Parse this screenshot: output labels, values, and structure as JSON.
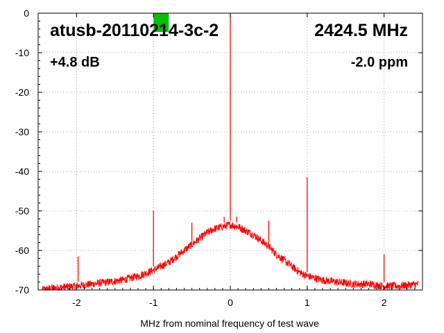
{
  "chart_data": {
    "type": "line",
    "title": "",
    "xlabel": "MHz from nominal frequency of test wave",
    "ylabel": "",
    "xlim": [
      -2.5,
      2.5
    ],
    "ylim": [
      -70,
      0
    ],
    "grid": true,
    "x_ticks": [
      -2,
      -1,
      0,
      1,
      2
    ],
    "x_tick_labels": [
      "-2",
      "-1",
      "0",
      "1",
      "2"
    ],
    "y_ticks": [
      0,
      -10,
      -20,
      -30,
      -40,
      -50,
      -60,
      -70
    ],
    "y_tick_labels": [
      "0",
      "-10",
      "-20",
      "-30",
      "-40",
      "-50",
      "-60",
      "-70"
    ],
    "annotations": {
      "device": "atusb-20110214-3c-2",
      "frequency": "2424.5 MHz",
      "gain": "+4.8 dB",
      "offset": "-2.0 ppm"
    },
    "series": [
      {
        "color": "#ff0000",
        "x": [
          -2.45,
          -2.3,
          -2.0,
          -1.8,
          -1.6,
          -1.4,
          -1.2,
          -1.0,
          -0.9,
          -0.8,
          -0.7,
          -0.6,
          -0.5,
          -0.4,
          -0.3,
          -0.2,
          -0.1,
          0.0,
          0.1,
          0.2,
          0.3,
          0.4,
          0.5,
          0.6,
          0.7,
          0.8,
          0.9,
          1.0,
          1.2,
          1.4,
          1.6,
          1.8,
          2.0,
          2.2,
          2.45
        ],
        "y": [
          -70,
          -69.5,
          -69,
          -68.5,
          -68,
          -67.5,
          -66.5,
          -65,
          -64,
          -63,
          -61.5,
          -60,
          -58.5,
          -57,
          -55.5,
          -54.5,
          -54,
          -53.5,
          -54,
          -55,
          -56,
          -57.5,
          -59,
          -61,
          -62.5,
          -64,
          -65.5,
          -66.5,
          -67.5,
          -68,
          -68.5,
          -68.5,
          -69,
          -69,
          -68.5
        ]
      }
    ],
    "spurs": [
      {
        "x": -1.98,
        "y": -61.5
      },
      {
        "x": -1.0,
        "y": -50
      },
      {
        "x": -0.5,
        "y": -53
      },
      {
        "x": -0.08,
        "y": -51.5
      },
      {
        "x": 0.0,
        "y": 0
      },
      {
        "x": 0.08,
        "y": -51.5
      },
      {
        "x": 0.5,
        "y": -52.5
      },
      {
        "x": 1.0,
        "y": -41.5
      },
      {
        "x": 2.0,
        "y": -61
      }
    ],
    "marker": {
      "x": -0.9,
      "color": "#00c000"
    }
  }
}
